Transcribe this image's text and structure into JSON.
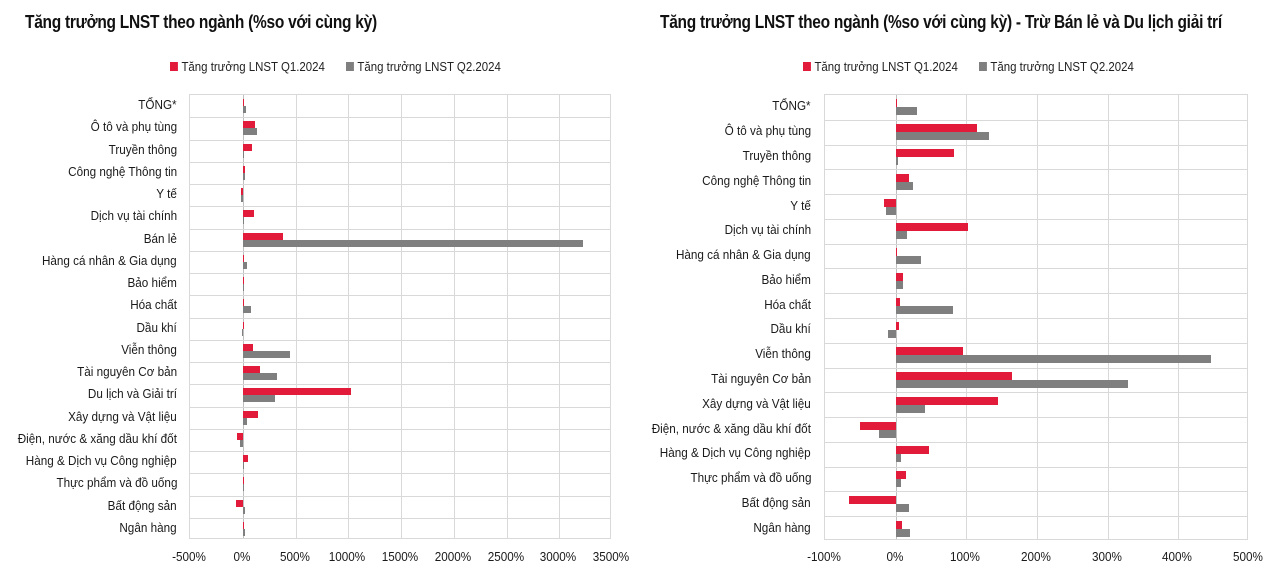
{
  "colors": {
    "q1": "#e31b3b",
    "q2": "#7f7f7f",
    "grid": "#d9d9d9"
  },
  "chart_data": [
    {
      "type": "bar",
      "orientation": "horizontal",
      "title": "Tăng trưởng LNST theo ngành (%so với cùng kỳ)",
      "xlabel": "",
      "ylabel": "",
      "xlim": [
        -500,
        3500
      ],
      "xticks": [
        -500,
        0,
        500,
        1000,
        1500,
        2000,
        2500,
        3000,
        3500
      ],
      "xtick_labels": [
        "-500%",
        "0%",
        "500%",
        "1000%",
        "1500%",
        "2000%",
        "2500%",
        "3000%",
        "3500%"
      ],
      "grid": true,
      "legend_position": "top",
      "categories": [
        "TỔNG*",
        "Ô tô và phụ tùng",
        "Truyền thông",
        "Công nghệ Thông tin",
        "Y tế",
        "Dịch vụ tài chính",
        "Bán lẻ",
        "Hàng cá nhân & Gia dụng",
        "Bảo hiểm",
        "Hóa chất",
        "Dầu khí",
        "Viễn thông",
        "Tài nguyên Cơ bản",
        "Du lịch và Giải trí",
        "Xây dựng và Vật liệu",
        "Điện, nước & xăng dầu khí đốt",
        "Hàng & Dịch vụ Công nghiệp",
        "Thực phẩm và đồ uống",
        "Bất động sản",
        "Ngân hàng"
      ],
      "series": [
        {
          "name": "Tăng trưởng LNST Q1.2024",
          "values": [
            0,
            115,
            83,
            19,
            -17,
            102,
            383,
            1,
            11,
            6,
            5,
            95,
            165,
            1030,
            145,
            -50,
            47,
            14,
            -66,
            9
          ]
        },
        {
          "name": "Tăng trưởng LNST Q2.2024",
          "values": [
            30,
            132,
            4,
            24,
            -14,
            16,
            3225,
            36,
            11,
            81,
            -11,
            446,
            329,
            304,
            41,
            -23,
            7,
            8,
            19,
            21
          ]
        }
      ]
    },
    {
      "type": "bar",
      "orientation": "horizontal",
      "title": "Tăng trưởng LNST theo ngành (%so với cùng kỳ) - Trừ Bán lẻ và Du lịch giải trí",
      "xlabel": "",
      "ylabel": "",
      "xlim": [
        -100,
        500
      ],
      "xticks": [
        -100,
        0,
        100,
        200,
        300,
        400,
        500
      ],
      "xtick_labels": [
        "-100%",
        "0%",
        "100%",
        "200%",
        "300%",
        "400%",
        "500%"
      ],
      "grid": true,
      "legend_position": "top",
      "categories": [
        "TỔNG*",
        "Ô tô và phụ tùng",
        "Truyền thông",
        "Công nghệ Thông tin",
        "Y tế",
        "Dịch vụ tài chính",
        "Hàng cá nhân & Gia dụng",
        "Bảo hiểm",
        "Hóa chất",
        "Dầu khí",
        "Viễn thông",
        "Tài nguyên Cơ bản",
        "Xây dựng và Vật liệu",
        "Điện, nước & xăng dầu khí đốt",
        "Hàng & Dịch vụ Công nghiệp",
        "Thực phẩm và đồ uống",
        "Bất động sản",
        "Ngân hàng"
      ],
      "series": [
        {
          "name": "Tăng trưởng LNST Q1.2024",
          "values": [
            0,
            115,
            83,
            19,
            -17,
            102,
            1,
            11,
            6,
            5,
            95,
            165,
            145,
            -50,
            47,
            14,
            -66,
            9
          ]
        },
        {
          "name": "Tăng trưởng LNST Q2.2024",
          "values": [
            30,
            132,
            4,
            24,
            -14,
            16,
            36,
            11,
            81,
            -11,
            446,
            329,
            41,
            -23,
            7,
            8,
            19,
            21
          ]
        }
      ]
    }
  ]
}
